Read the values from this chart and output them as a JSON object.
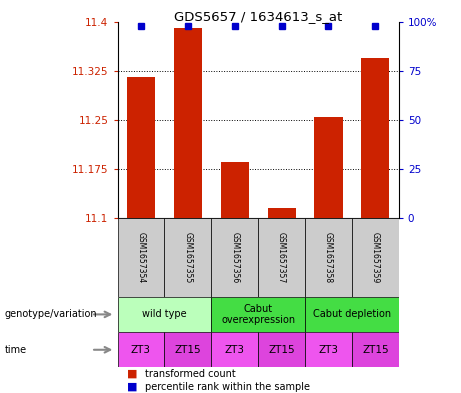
{
  "title": "GDS5657 / 1634613_s_at",
  "samples": [
    "GSM1657354",
    "GSM1657355",
    "GSM1657356",
    "GSM1657357",
    "GSM1657358",
    "GSM1657359"
  ],
  "transformed_counts": [
    11.315,
    11.39,
    11.185,
    11.115,
    11.255,
    11.345
  ],
  "percentile_ranks": [
    98,
    98,
    98,
    98,
    98,
    98
  ],
  "ylim_left": [
    11.1,
    11.4
  ],
  "ylim_right": [
    0,
    100
  ],
  "yticks_left": [
    11.1,
    11.175,
    11.25,
    11.325,
    11.4
  ],
  "yticks_right": [
    0,
    25,
    50,
    75,
    100
  ],
  "ytick_labels_left": [
    "11.1",
    "11.175",
    "11.25",
    "11.325",
    "11.4"
  ],
  "ytick_labels_right": [
    "0",
    "25",
    "50",
    "75",
    "100%"
  ],
  "bar_color": "#cc2200",
  "dot_color": "#0000cc",
  "genotype_groups": [
    {
      "label": "wild type",
      "span": [
        0,
        2
      ],
      "color": "#bbffbb"
    },
    {
      "label": "Cabut\noverexpression",
      "span": [
        2,
        4
      ],
      "color": "#44dd44"
    },
    {
      "label": "Cabut depletion",
      "span": [
        4,
        6
      ],
      "color": "#44dd44"
    }
  ],
  "time_labels": [
    "ZT3",
    "ZT15",
    "ZT3",
    "ZT15",
    "ZT3",
    "ZT15"
  ],
  "time_colors": [
    "#ee55ee",
    "#dd44dd",
    "#ee55ee",
    "#dd44dd",
    "#ee55ee",
    "#dd44dd"
  ],
  "sample_bg_color": "#cccccc",
  "genotype_label": "genotype/variation",
  "time_label": "time",
  "legend_bar_label": "transformed count",
  "legend_dot_label": "percentile rank within the sample",
  "grid_color": "#000000",
  "bar_width": 0.6,
  "fig_width": 4.61,
  "fig_height": 3.93,
  "dpi": 100
}
